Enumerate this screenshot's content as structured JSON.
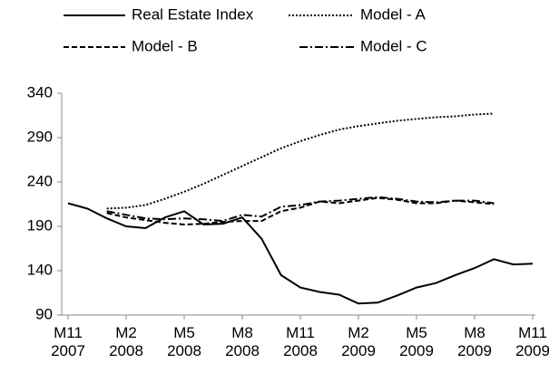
{
  "chart_data": {
    "type": "line",
    "categories": [
      "M11 2007",
      null,
      null,
      "M2 2008",
      null,
      null,
      "M5 2008",
      null,
      null,
      "M8 2008",
      null,
      null,
      "M11 2008",
      null,
      null,
      "M2 2009",
      null,
      null,
      "M5 2009",
      null,
      null,
      "M8 2009",
      null,
      null,
      "M11 2009"
    ],
    "ylim": [
      90,
      340
    ],
    "yticks": [
      90,
      140,
      190,
      240,
      290,
      340
    ],
    "legend": "top",
    "series": [
      {
        "name": "Real Estate Index",
        "color": "#000000",
        "style": "solid",
        "values": [
          216,
          210,
          199,
          190,
          188,
          200,
          207,
          192,
          193,
          200,
          176,
          135,
          121,
          116,
          113,
          103,
          104,
          112,
          121,
          126,
          135,
          143,
          153,
          147,
          148
        ]
      },
      {
        "name": "Model - A",
        "color": "#000000",
        "style": "dotted",
        "values": [
          null,
          null,
          210,
          211,
          214,
          221,
          229,
          238,
          248,
          258,
          268,
          278,
          286,
          293,
          299,
          303,
          306,
          309,
          311,
          313,
          314,
          316,
          317,
          null,
          null
        ]
      },
      {
        "name": "Model - B",
        "color": "#000000",
        "style": "dashed",
        "values": [
          null,
          null,
          205,
          200,
          197,
          194,
          192,
          193,
          195,
          196,
          196,
          207,
          211,
          218,
          216,
          219,
          222,
          220,
          216,
          216,
          219,
          217,
          215,
          null,
          null
        ]
      },
      {
        "name": "Model - C",
        "color": "#000000",
        "style": "dashdot",
        "values": [
          null,
          null,
          207,
          203,
          199,
          198,
          199,
          198,
          196,
          203,
          201,
          212,
          214,
          218,
          219,
          221,
          223,
          221,
          218,
          217,
          219,
          219,
          216,
          null,
          null
        ]
      }
    ]
  }
}
